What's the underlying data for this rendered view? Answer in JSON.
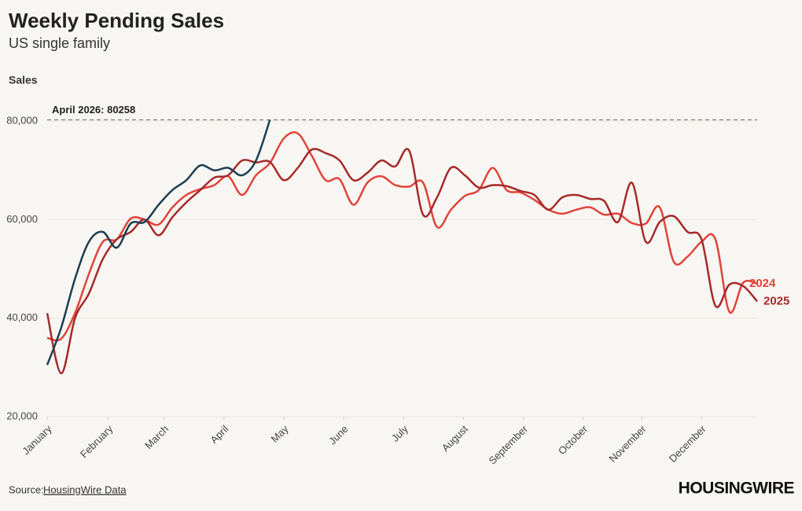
{
  "chart_data": {
    "type": "line",
    "title": "Weekly Pending Sales",
    "subtitle": "US single family",
    "y_label": "Sales",
    "annotation": "April 2026: 80258",
    "reference_line": 80258,
    "source_prefix": "Source:",
    "source_link": "HousingWire Data",
    "logo": "HOUSINGWIRE",
    "x": [
      1,
      2,
      3,
      4,
      5,
      6,
      7,
      8,
      9,
      10,
      11,
      12,
      13,
      14,
      15,
      16,
      17,
      18,
      19,
      20,
      21,
      22,
      23,
      24,
      25,
      26,
      27,
      28,
      29,
      30,
      31,
      32,
      33,
      34,
      35,
      36,
      37,
      38,
      39,
      40,
      41,
      42,
      43,
      44,
      45,
      46,
      47,
      48,
      49,
      50,
      51,
      52
    ],
    "xlim": [
      1,
      52
    ],
    "xticks": [
      {
        "value": 1,
        "label": "January"
      },
      {
        "value": 5.4,
        "label": "February"
      },
      {
        "value": 9.4,
        "label": "March"
      },
      {
        "value": 13.7,
        "label": "April"
      },
      {
        "value": 18,
        "label": "May"
      },
      {
        "value": 22.3,
        "label": "June"
      },
      {
        "value": 26.6,
        "label": "July"
      },
      {
        "value": 30.9,
        "label": "August"
      },
      {
        "value": 35.2,
        "label": "September"
      },
      {
        "value": 39.5,
        "label": "October"
      },
      {
        "value": 43.7,
        "label": "November"
      },
      {
        "value": 48,
        "label": "December"
      }
    ],
    "ylim": [
      20000,
      80000
    ],
    "yticks": [
      {
        "value": 20000,
        "label": "20,000"
      },
      {
        "value": 40000,
        "label": "40,000"
      },
      {
        "value": 60000,
        "label": "60,000"
      },
      {
        "value": 80000,
        "label": "80,000"
      }
    ],
    "grid": true,
    "series": [
      {
        "name": "2024",
        "color": "#e0443a",
        "values": [
          36000,
          35800,
          41000,
          49000,
          55500,
          56000,
          60200,
          60000,
          59000,
          62500,
          65000,
          66200,
          67000,
          68800,
          65000,
          69000,
          71500,
          76500,
          77500,
          73000,
          68000,
          68200,
          63000,
          67500,
          68800,
          67000,
          66700,
          67500,
          58500,
          62000,
          64800,
          66000,
          70500,
          66000,
          65500,
          64000,
          62000,
          61200,
          62000,
          62500,
          61000,
          61200,
          59300,
          59200,
          62500,
          51500,
          52500,
          55500,
          56000,
          41300,
          47200,
          47000
        ]
      },
      {
        "name": "2025",
        "color": "#a52a2a",
        "values": [
          41000,
          28800,
          40000,
          45000,
          52000,
          56000,
          57500,
          60000,
          56800,
          60500,
          63500,
          66000,
          68500,
          69000,
          72000,
          71600,
          71700,
          68000,
          70500,
          74200,
          73500,
          72000,
          68000,
          69500,
          72000,
          70800,
          74000,
          61000,
          64500,
          70500,
          69000,
          66500,
          67000,
          66800,
          65800,
          65000,
          62000,
          64500,
          65000,
          64200,
          63800,
          59500,
          67500,
          55500,
          59500,
          60700,
          57500,
          56000,
          42500,
          46800,
          46500,
          43400
        ]
      },
      {
        "color": "#1c3f52",
        "values": [
          30500,
          38000,
          48000,
          55500,
          57500,
          54300,
          59200,
          59500,
          63000,
          66000,
          68000,
          71000,
          70000,
          70500,
          69000,
          72000,
          80258,
          null,
          null,
          null,
          null,
          null,
          null,
          null,
          null,
          null,
          null,
          null,
          null,
          null,
          null,
          null,
          null,
          null,
          null,
          null,
          null,
          null,
          null,
          null,
          null,
          null,
          null,
          null,
          null,
          null,
          null,
          null,
          null,
          null,
          null,
          null
        ]
      }
    ]
  }
}
